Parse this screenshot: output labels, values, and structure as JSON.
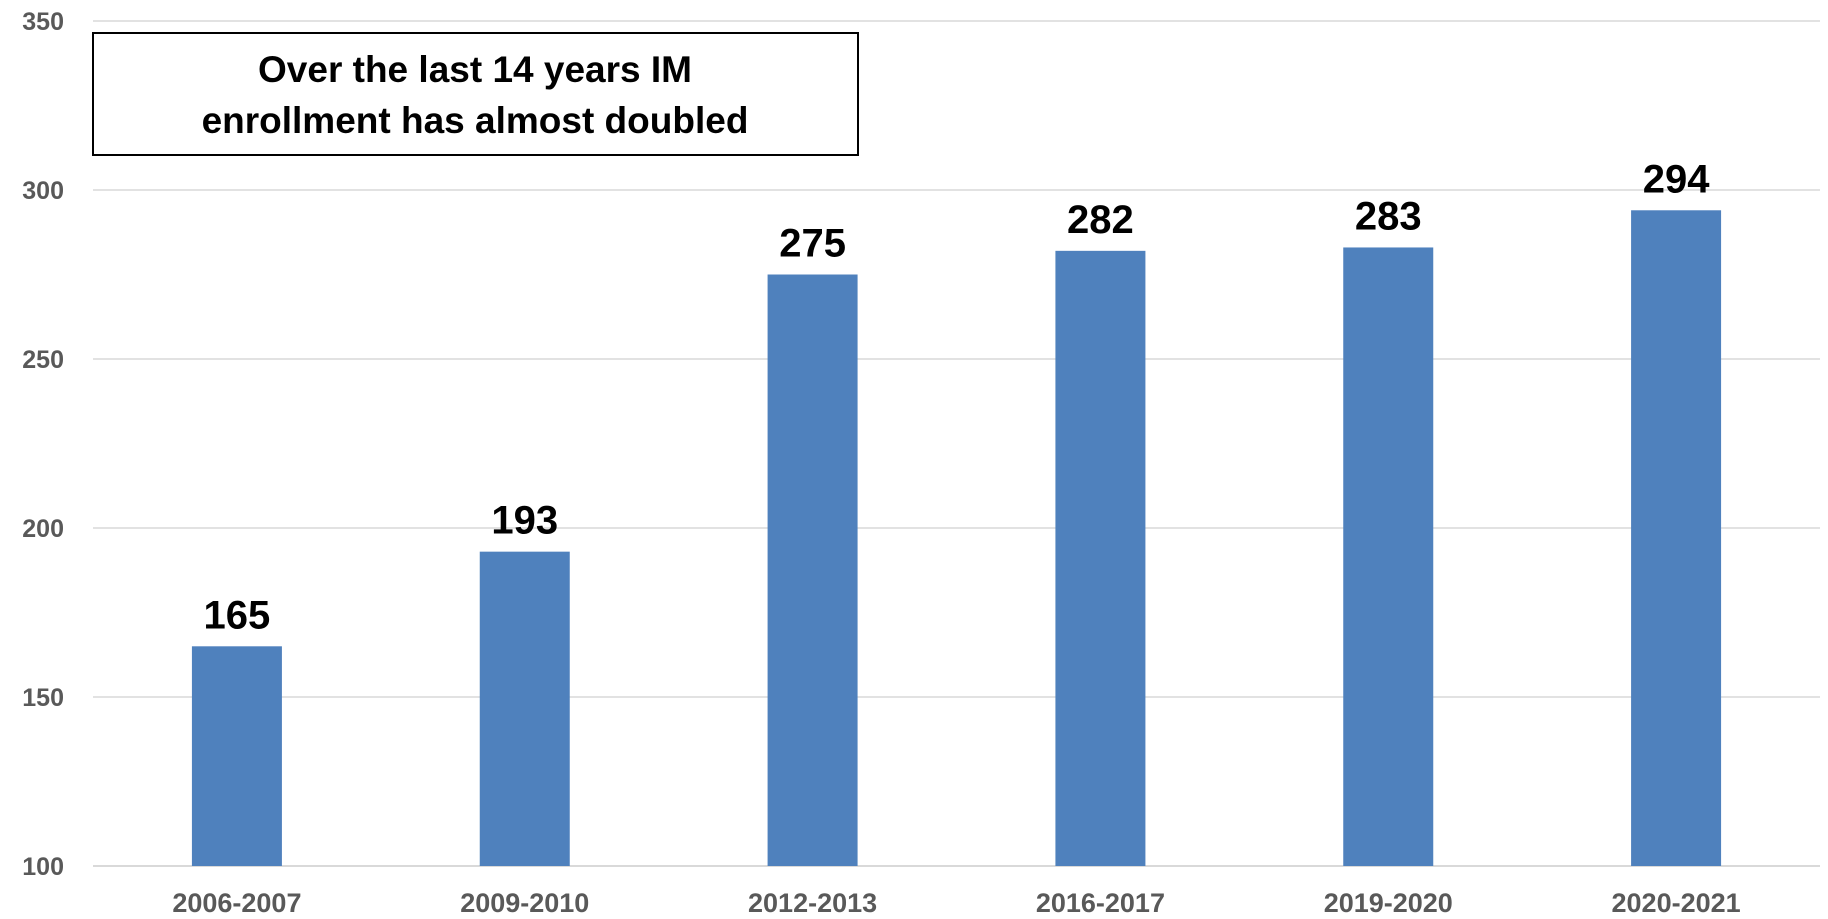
{
  "chart_data": {
    "type": "bar",
    "categories": [
      "2006-2007",
      "2009-2010",
      "2012-2013",
      "2016-2017",
      "2019-2020",
      "2020-2021"
    ],
    "values": [
      165,
      193,
      275,
      282,
      283,
      294
    ],
    "data_labels": [
      "165",
      "193",
      "275",
      "282",
      "283",
      "294"
    ],
    "title": "",
    "xlabel": "",
    "ylabel": "",
    "ylim": [
      100,
      350
    ],
    "yticks": [
      100,
      150,
      200,
      250,
      300,
      350
    ],
    "grid": true,
    "legend": "none",
    "annotation": {
      "lines": [
        "Over the last 14 years IM",
        "enrollment has almost doubled"
      ]
    },
    "colors": {
      "bar": "#4f81bd",
      "grid": "#d9d9d9",
      "tick_text": "#595959",
      "label_text": "#000000"
    }
  }
}
